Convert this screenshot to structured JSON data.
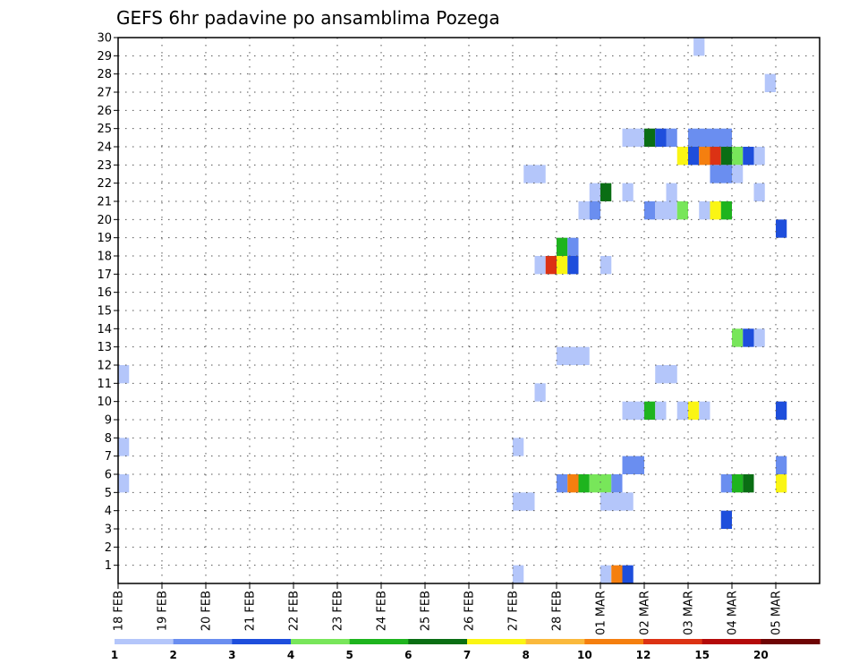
{
  "chart_data": {
    "type": "heatmap",
    "title": "GEFS 6hr padavine po ansamblima Pozega",
    "xlabel": "",
    "ylabel": "",
    "x_unit": "6-hour step",
    "x_range": [
      0,
      64
    ],
    "x_ticks": [
      {
        "label": "18 FEB",
        "step": 0
      },
      {
        "label": "19 FEB",
        "step": 4
      },
      {
        "label": "20 FEB",
        "step": 8
      },
      {
        "label": "21 FEB",
        "step": 12
      },
      {
        "label": "22 FEB",
        "step": 16
      },
      {
        "label": "23 FEB",
        "step": 20
      },
      {
        "label": "24 FEB",
        "step": 24
      },
      {
        "label": "25 FEB",
        "step": 28
      },
      {
        "label": "26 FEB",
        "step": 32
      },
      {
        "label": "27 FEB",
        "step": 36
      },
      {
        "label": "28 FEB",
        "step": 40
      },
      {
        "label": "01 MAR",
        "step": 44
      },
      {
        "label": "02 MAR",
        "step": 48
      },
      {
        "label": "03 MAR",
        "step": 52
      },
      {
        "label": "04 MAR",
        "step": 56
      },
      {
        "label": "05 MAR",
        "step": 60
      }
    ],
    "y_range": [
      0,
      30
    ],
    "y_ticks": [
      1,
      2,
      3,
      4,
      5,
      6,
      7,
      8,
      9,
      10,
      11,
      12,
      13,
      14,
      15,
      16,
      17,
      18,
      19,
      20,
      21,
      22,
      23,
      24,
      25,
      26,
      27,
      28,
      29,
      30
    ],
    "grid": true,
    "colorbar": {
      "placement": "bottom",
      "labels": [
        "1",
        "2",
        "3",
        "4",
        "5",
        "6",
        "7",
        "8",
        "10",
        "12",
        "15",
        "20"
      ],
      "colors": [
        "#b4c6fa",
        "#6a8ef0",
        "#1e4edc",
        "#78e65a",
        "#1eb41e",
        "#0a6e14",
        "#faf514",
        "#fab93c",
        "#f57f0f",
        "#dc3214",
        "#b40a0a",
        "#6e0505"
      ]
    },
    "cells": [
      {
        "m": 30,
        "s": [
          [
            52.5,
            53.5,
            0
          ]
        ]
      },
      {
        "m": 28,
        "s": [
          [
            59,
            60,
            0
          ]
        ]
      },
      {
        "m": 25,
        "s": [
          [
            46,
            48,
            0
          ],
          [
            48,
            49,
            5
          ],
          [
            49,
            50,
            2
          ],
          [
            50,
            51,
            1
          ],
          [
            52,
            56,
            1
          ]
        ]
      },
      {
        "m": 24,
        "s": [
          [
            51,
            52,
            6
          ],
          [
            52,
            53,
            2
          ],
          [
            53,
            54,
            8
          ],
          [
            54,
            55,
            9
          ],
          [
            55,
            56,
            5
          ],
          [
            56,
            57,
            3
          ],
          [
            57,
            58,
            2
          ],
          [
            58,
            59,
            0
          ]
        ]
      },
      {
        "m": 23,
        "s": [
          [
            37,
            39,
            0
          ],
          [
            54,
            56,
            1
          ],
          [
            56,
            57,
            0
          ]
        ]
      },
      {
        "m": 22,
        "s": [
          [
            43,
            44,
            0
          ],
          [
            44,
            45,
            5
          ],
          [
            46,
            47,
            0
          ],
          [
            50,
            51,
            0
          ],
          [
            58,
            59,
            0
          ]
        ]
      },
      {
        "m": 21,
        "s": [
          [
            42,
            43,
            0
          ],
          [
            43,
            44,
            1
          ],
          [
            48,
            49,
            1
          ],
          [
            49,
            51,
            0
          ],
          [
            51,
            52,
            3
          ],
          [
            53,
            54,
            0
          ],
          [
            54,
            55,
            6
          ],
          [
            55,
            56,
            4
          ]
        ]
      },
      {
        "m": 20,
        "s": [
          [
            60,
            61,
            2
          ]
        ]
      },
      {
        "m": 19,
        "s": [
          [
            40,
            41,
            4
          ],
          [
            41,
            42,
            1
          ]
        ]
      },
      {
        "m": 18,
        "s": [
          [
            38,
            39,
            0
          ],
          [
            39,
            40,
            9
          ],
          [
            40,
            41,
            6
          ],
          [
            41,
            42,
            2
          ],
          [
            44,
            45,
            0
          ]
        ]
      },
      {
        "m": 14,
        "s": [
          [
            56,
            57,
            3
          ],
          [
            57,
            58,
            2
          ],
          [
            58,
            59,
            0
          ]
        ]
      },
      {
        "m": 13,
        "s": [
          [
            40,
            43,
            0
          ]
        ]
      },
      {
        "m": 12,
        "s": [
          [
            0,
            1,
            0
          ],
          [
            49,
            51,
            0
          ]
        ]
      },
      {
        "m": 11,
        "s": [
          [
            38,
            39,
            0
          ]
        ]
      },
      {
        "m": 10,
        "s": [
          [
            46,
            48,
            0
          ],
          [
            48,
            49,
            4
          ],
          [
            49,
            50,
            0
          ],
          [
            51,
            52,
            0
          ],
          [
            52,
            53,
            6
          ],
          [
            53,
            54,
            0
          ],
          [
            60,
            61,
            2
          ]
        ]
      },
      {
        "m": 8,
        "s": [
          [
            0,
            1,
            0
          ],
          [
            36,
            37,
            0
          ]
        ]
      },
      {
        "m": 7,
        "s": [
          [
            46,
            48,
            1
          ],
          [
            60,
            61,
            1
          ]
        ]
      },
      {
        "m": 6,
        "s": [
          [
            0,
            1,
            0
          ],
          [
            40,
            41,
            1
          ],
          [
            41,
            42,
            8
          ],
          [
            42,
            43,
            4
          ],
          [
            43,
            45,
            3
          ],
          [
            45,
            46,
            1
          ],
          [
            55,
            56,
            1
          ],
          [
            56,
            57,
            4
          ],
          [
            57,
            58,
            5
          ],
          [
            60,
            61,
            6
          ]
        ]
      },
      {
        "m": 5,
        "s": [
          [
            36,
            38,
            0
          ],
          [
            44,
            46,
            0
          ],
          [
            46,
            47,
            0
          ]
        ]
      },
      {
        "m": 4,
        "s": [
          [
            55,
            56,
            2
          ]
        ]
      },
      {
        "m": 1,
        "s": [
          [
            36,
            37,
            0
          ],
          [
            44,
            45,
            0
          ],
          [
            45,
            46,
            8
          ],
          [
            46,
            47,
            2
          ]
        ]
      }
    ]
  }
}
